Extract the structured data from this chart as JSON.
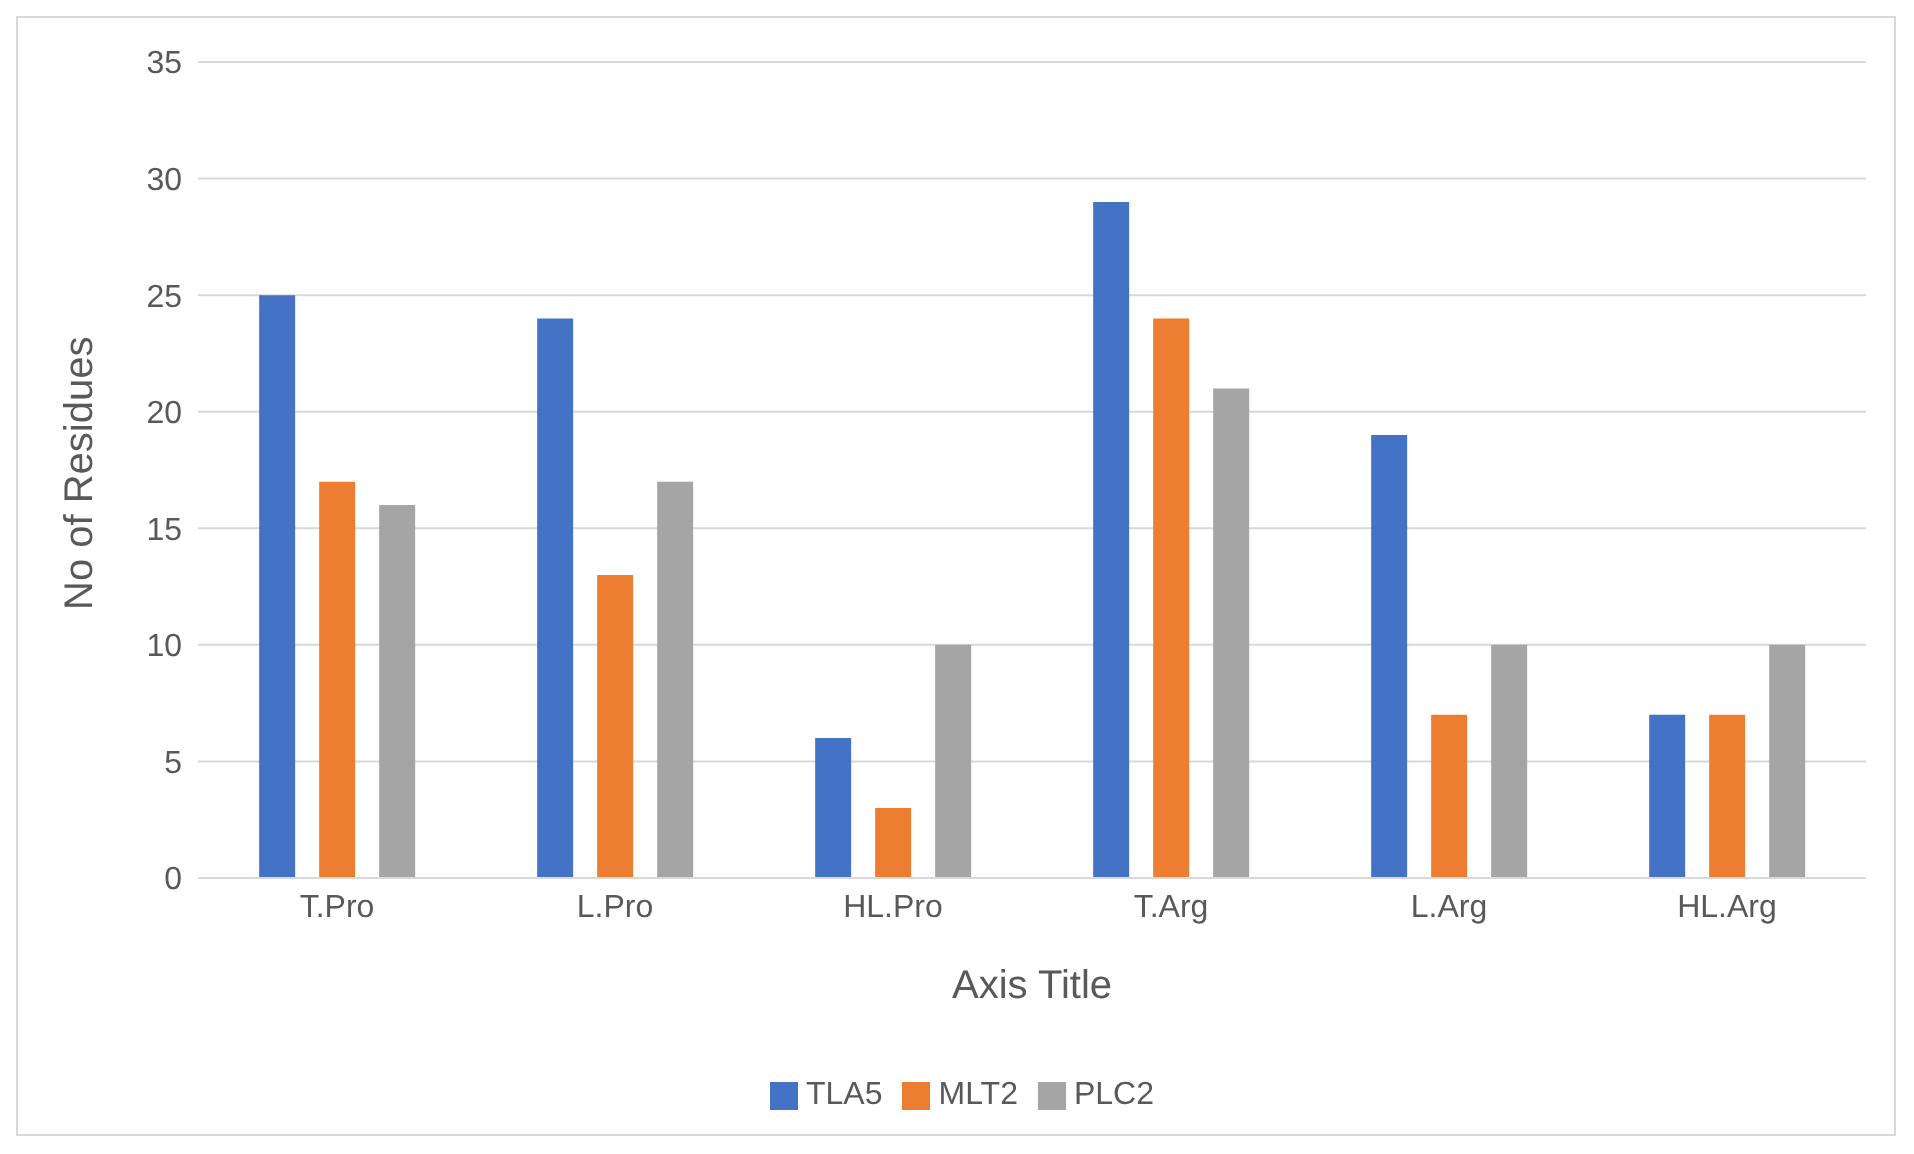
{
  "chart_data": {
    "type": "bar",
    "xlabel": "Axis Title",
    "ylabel": "No of Residues",
    "categories": [
      "T.Pro",
      "L.Pro",
      "HL.Pro",
      "T.Arg",
      "L.Arg",
      "HL.Arg"
    ],
    "series": [
      {
        "name": "TLA5",
        "color": "#4472c4",
        "values": [
          25,
          24,
          6,
          29,
          19,
          7
        ]
      },
      {
        "name": "MLT2",
        "color": "#ed7d31",
        "values": [
          17,
          13,
          3,
          24,
          7,
          7
        ]
      },
      {
        "name": "PLC2",
        "color": "#a5a5a5",
        "values": [
          16,
          17,
          10,
          21,
          10,
          10
        ]
      }
    ],
    "ylim": [
      0,
      35
    ],
    "yticks": [
      0,
      5,
      10,
      15,
      20,
      25,
      30,
      35
    ],
    "grid": "y",
    "legend": "bottom"
  }
}
